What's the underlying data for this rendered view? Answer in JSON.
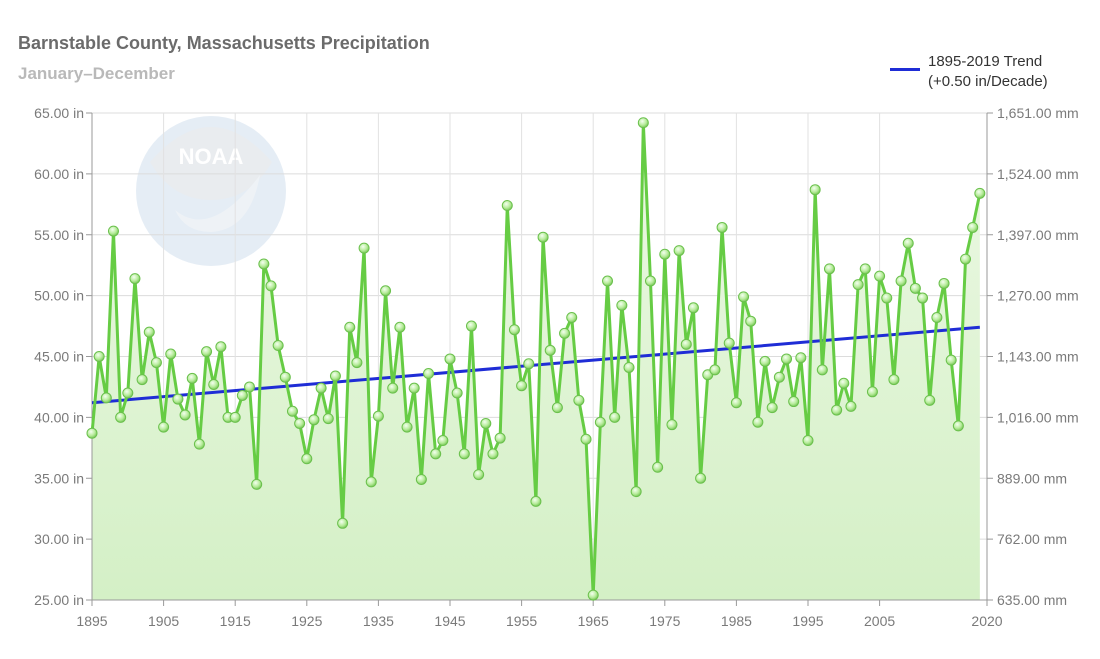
{
  "chart_data": {
    "type": "line",
    "title": "Barnstable County, Massachusetts Precipitation",
    "subtitle": "January–December",
    "x_start_year": 1895,
    "x_end_year": 2019,
    "xlim": [
      1895,
      2020
    ],
    "x_ticks": [
      1895,
      1905,
      1915,
      1925,
      1935,
      1945,
      1955,
      1965,
      1975,
      1985,
      1995,
      2005,
      2020
    ],
    "ylim": [
      25,
      65
    ],
    "y_ticks_left": [
      "25.00 in",
      "30.00 in",
      "35.00 in",
      "40.00 in",
      "45.00 in",
      "50.00 in",
      "55.00 in",
      "60.00 in",
      "65.00 in"
    ],
    "y_ticks_right": [
      "635.00 mm",
      "762.00 mm",
      "889.00 mm",
      "1,016.00 mm",
      "1,143.00 mm",
      "1,270.00 mm",
      "1,397.00 mm",
      "1,524.00 mm",
      "1,651.00 mm"
    ],
    "grid": true,
    "series": [
      {
        "type": "line",
        "color": "#66cc44",
        "values": [
          38.7,
          45.0,
          41.6,
          55.3,
          40.0,
          42.0,
          51.4,
          43.1,
          47.0,
          44.5,
          39.2,
          45.2,
          41.5,
          40.2,
          43.2,
          37.8,
          45.4,
          42.7,
          45.8,
          40.0,
          40.0,
          41.8,
          42.5,
          34.5,
          52.6,
          50.8,
          45.9,
          43.3,
          40.5,
          39.5,
          36.6,
          39.8,
          42.4,
          39.9,
          43.4,
          31.3,
          47.4,
          44.5,
          53.9,
          34.7,
          40.1,
          50.4,
          42.4,
          47.4,
          39.2,
          42.4,
          34.9,
          43.6,
          37.0,
          38.1,
          44.8,
          42.0,
          37.0,
          47.5,
          35.3,
          39.5,
          37.0,
          38.3,
          57.4,
          47.2,
          42.6,
          44.4,
          33.1,
          54.8,
          45.5,
          40.8,
          46.9,
          48.2,
          41.4,
          38.2,
          25.4,
          39.6,
          51.2,
          40.0,
          49.2,
          44.1,
          33.9,
          64.2,
          51.2,
          35.9,
          53.4,
          39.4,
          53.7,
          46.0,
          49.0,
          35.0,
          43.5,
          43.9,
          55.6,
          46.1,
          41.2,
          49.9,
          47.9,
          39.6,
          44.6,
          40.8,
          43.3,
          44.8,
          41.3,
          44.9,
          38.1,
          58.7,
          43.9,
          52.2,
          40.6,
          42.8,
          40.9,
          50.9,
          52.2,
          42.1,
          51.6,
          49.8,
          43.1,
          51.2,
          54.3,
          50.6,
          49.8,
          41.4,
          48.2,
          51.0,
          44.7,
          39.3,
          53.0,
          55.6,
          58.4
        ]
      },
      {
        "name": "1895-2019 Trend",
        "type": "line",
        "color": "#1f2dd6",
        "values": [
          41.2,
          47.4
        ]
      }
    ],
    "legend": {
      "label_line1": "1895-2019 Trend",
      "label_line2": "(+0.50 in/Decade)",
      "placement": "top-right"
    },
    "watermark": "NOAA"
  }
}
